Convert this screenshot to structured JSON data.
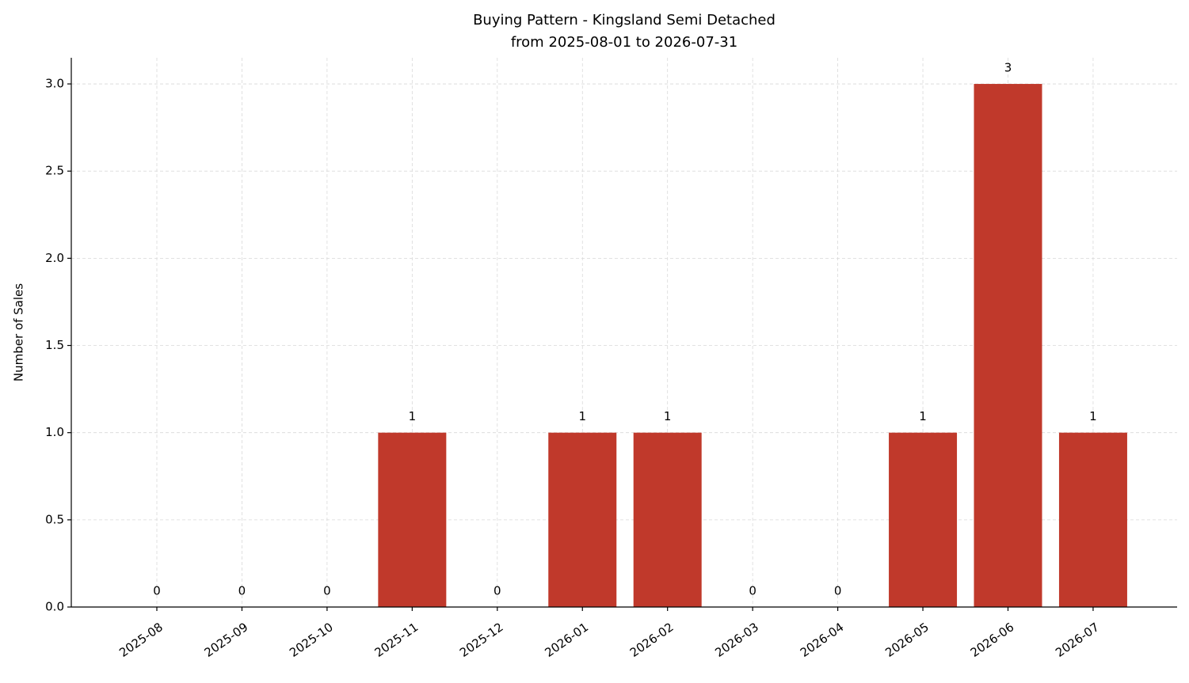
{
  "chart_data": {
    "type": "bar",
    "title": "Buying Pattern - Kingsland Semi Detached",
    "subtitle": "from 2025-08-01 to 2026-07-31",
    "y_label": "Number of Sales",
    "categories": [
      "2025-08",
      "2025-09",
      "2025-10",
      "2025-11",
      "2025-12",
      "2026-01",
      "2026-02",
      "2026-03",
      "2026-04",
      "2026-05",
      "2026-06",
      "2026-07"
    ],
    "values": [
      0,
      0,
      0,
      1,
      0,
      1,
      1,
      0,
      0,
      1,
      3,
      1
    ],
    "color": "#c0392b",
    "ylim": [
      0,
      3.15
    ],
    "yticks": [
      {
        "value": 0,
        "label": "0.0"
      },
      {
        "value": 0.5,
        "label": "0.5"
      },
      {
        "value": 1,
        "label": "1.0"
      },
      {
        "value": 1.5,
        "label": "1.5"
      },
      {
        "value": 2,
        "label": "2.0"
      },
      {
        "value": 2.5,
        "label": "2.5"
      },
      {
        "value": 3,
        "label": "3.0"
      }
    ],
    "grid": true
  }
}
